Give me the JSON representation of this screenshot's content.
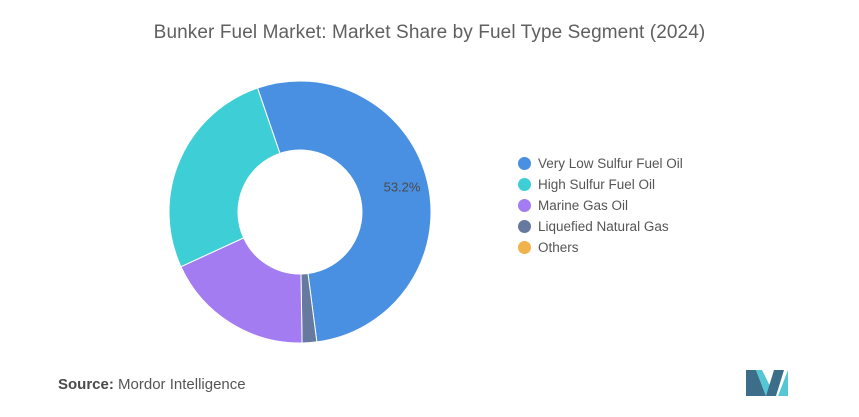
{
  "colors": {
    "very_low_sulfur": "#4a90e2",
    "high_sulfur": "#3ecfd6",
    "marine_gas_oil": "#a37cf2",
    "lng": "#66799e",
    "others": "#f0b24a",
    "logo_dark": "#3d6e89",
    "logo_light": "#55c6d4"
  },
  "chart_data": {
    "type": "pie",
    "variant": "donut",
    "title": "Bunker Fuel Market: Market Share by Fuel Type Segment (2024)",
    "legend_position": "right",
    "slices": [
      {
        "name": "Very Low Sulfur Fuel Oil",
        "value": 53.2,
        "label": "53.2%",
        "color": "#4a90e2"
      },
      {
        "name": "Liquefied Natural Gas",
        "value": 1.8,
        "label": "",
        "color": "#66799e"
      },
      {
        "name": "Marine Gas Oil",
        "value": 18.4,
        "label": "",
        "color": "#a37cf2"
      },
      {
        "name": "High Sulfur Fuel Oil",
        "value": 26.6,
        "label": "",
        "color": "#3ecfd6"
      },
      {
        "name": "Others",
        "value": 0,
        "label": "",
        "color": "#f0b24a"
      }
    ],
    "legend": [
      {
        "name": "Very Low Sulfur Fuel Oil",
        "color": "#4a90e2"
      },
      {
        "name": "High Sulfur Fuel Oil",
        "color": "#3ecfd6"
      },
      {
        "name": "Marine Gas Oil",
        "color": "#a37cf2"
      },
      {
        "name": "Liquefied Natural Gas",
        "color": "#66799e"
      },
      {
        "name": "Others",
        "color": "#f0b24a"
      }
    ]
  },
  "source": {
    "label": "Source:",
    "value": "Mordor Intelligence"
  },
  "logo": {
    "icon": "mordor-intelligence-logo-icon"
  }
}
